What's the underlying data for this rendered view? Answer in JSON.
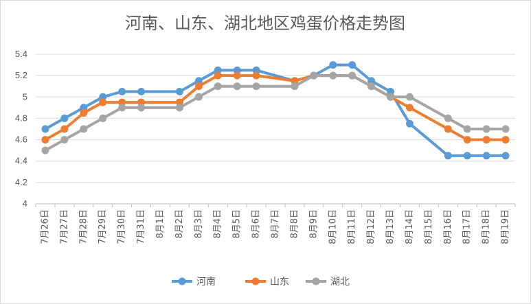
{
  "chart_data": {
    "type": "line",
    "title": "河南、山东、湖北地区鸡蛋价格走势图",
    "xlabel": "",
    "ylabel": "",
    "ylim": [
      4,
      5.4
    ],
    "yticks": [
      "4",
      "4.2",
      "4.4",
      "4.6",
      "4.8",
      "5",
      "5.2",
      "5.4"
    ],
    "grid": true,
    "legend": "bottom",
    "categories": [
      "7月26日",
      "7月27日",
      "7月28日",
      "7月29日",
      "7月30日",
      "7月31日",
      "8月1日",
      "8月2日",
      "8月3日",
      "8月4日",
      "8月5日",
      "8月6日",
      "8月7日",
      "8月8日",
      "8月9日",
      "8月10日",
      "8月11日",
      "8月12日",
      "8月13日",
      "8月14日",
      "8月15日",
      "8月16日",
      "8月17日",
      "8月18日",
      "8月19日"
    ],
    "series": [
      {
        "name": "河南",
        "color": "#5b9bd5",
        "values": [
          4.7,
          4.8,
          4.9,
          5.0,
          5.05,
          5.05,
          null,
          5.05,
          5.15,
          5.25,
          5.25,
          5.25,
          null,
          5.15,
          5.2,
          5.3,
          5.3,
          5.15,
          5.05,
          4.75,
          null,
          4.45,
          4.45,
          4.45,
          4.45
        ]
      },
      {
        "name": "山东",
        "color": "#ed7d31",
        "values": [
          4.6,
          4.7,
          4.85,
          4.95,
          4.95,
          4.95,
          null,
          4.95,
          5.1,
          5.2,
          5.2,
          5.2,
          null,
          5.15,
          5.2,
          5.2,
          5.2,
          5.1,
          5.0,
          4.9,
          null,
          4.7,
          4.6,
          4.6,
          4.6
        ]
      },
      {
        "name": "湖北",
        "color": "#a5a5a5",
        "values": [
          4.5,
          4.6,
          4.7,
          4.8,
          4.9,
          4.9,
          null,
          4.9,
          5.0,
          5.1,
          5.1,
          5.1,
          null,
          5.1,
          5.2,
          5.2,
          5.2,
          5.1,
          5.0,
          5.0,
          null,
          4.8,
          4.7,
          4.7,
          4.7
        ]
      }
    ]
  }
}
